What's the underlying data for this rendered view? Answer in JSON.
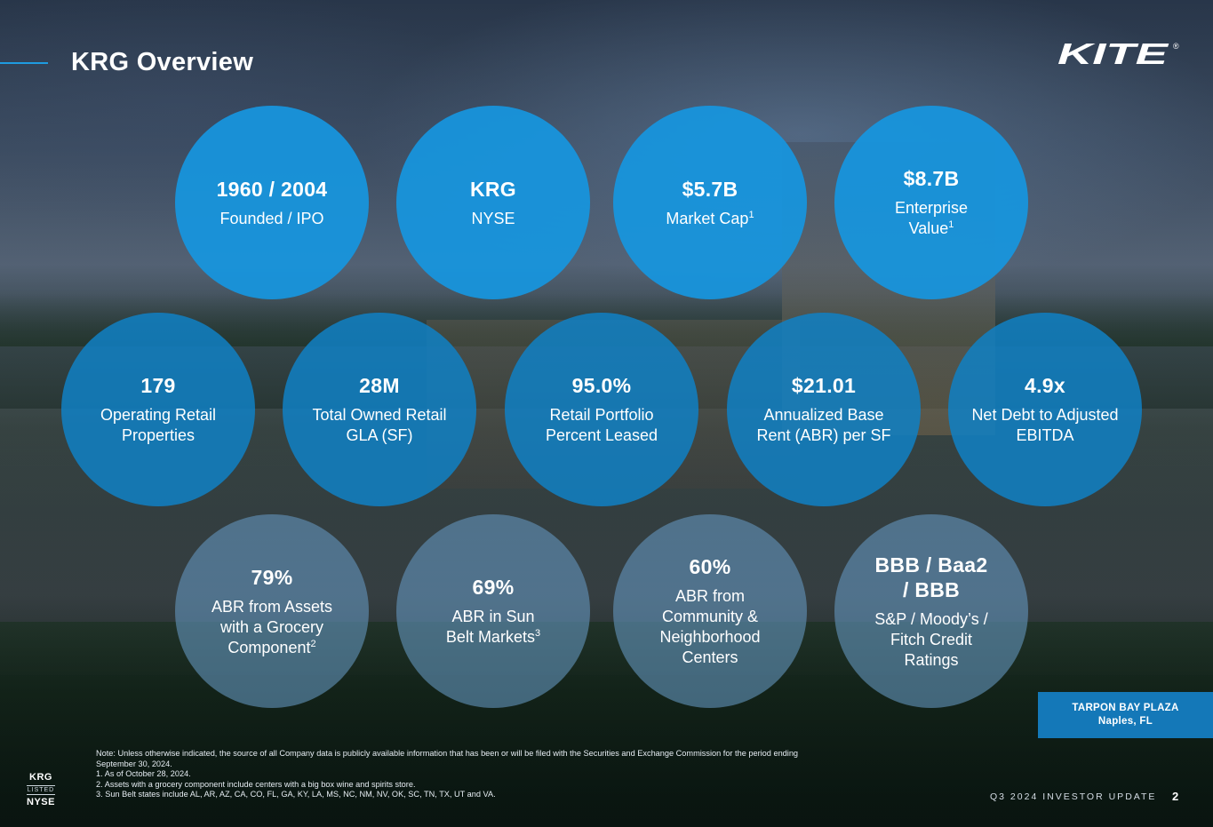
{
  "header": {
    "title": "KRG Overview",
    "logo_text": "KITE",
    "logo_mark": "®"
  },
  "metrics": [
    {
      "value": "1960 / 2004",
      "label": "Founded / IPO",
      "sup": ""
    },
    {
      "value": "KRG",
      "label": "NYSE",
      "sup": ""
    },
    {
      "value": "$5.7B",
      "label": "Market Cap",
      "sup": "1"
    },
    {
      "value": "$8.7B",
      "label": "Enterprise Value",
      "sup": "1"
    },
    {
      "value": "179",
      "label": "Operating Retail Properties",
      "sup": ""
    },
    {
      "value": "28M",
      "label": "Total Owned Retail GLA (SF)",
      "sup": ""
    },
    {
      "value": "95.0%",
      "label": "Retail Portfolio Percent Leased",
      "sup": ""
    },
    {
      "value": "$21.01",
      "label": "Annualized Base Rent (ABR) per SF",
      "sup": ""
    },
    {
      "value": "4.9x",
      "label": "Net Debt to Adjusted EBITDA",
      "sup": ""
    },
    {
      "value": "79%",
      "label": "ABR from Assets with a Grocery Component",
      "sup": "2"
    },
    {
      "value": "69%",
      "label": "ABR in Sun Belt Markets",
      "sup": "3"
    },
    {
      "value": "60%",
      "label": "ABR from Community & Neighborhood Centers",
      "sup": ""
    },
    {
      "value": "BBB / Baa2 / BBB",
      "label": "S&P / Moody’s / Fitch Credit Ratings",
      "sup": ""
    }
  ],
  "location": {
    "name": "TARPON BAY PLAZA",
    "city": "Naples, FL"
  },
  "footnotes": {
    "note_line1": "Note:  Unless otherwise indicated, the source of all Company data is publicly available information that has been or will be filed with the Securities and Exchange Commission for the period ending",
    "note_line2": "September 30, 2024.",
    "fn1": "1.   As of October 28, 2024.",
    "fn2": "2.   Assets with a grocery component include centers with a big box wine and spirits store.",
    "fn3": "3.   Sun Belt states include AL, AR, AZ, CA, CO, FL, GA, KY, LA, MS, NC, NM, NV, OK, SC, TN, TX, UT and VA."
  },
  "listing_badge": {
    "line1": "KRG",
    "line2": "LISTED",
    "line3": "NYSE"
  },
  "footer": {
    "label": "Q3 2024 INVESTOR UPDATE",
    "page_number": "2"
  },
  "colors": {
    "accent": "#1e9be0",
    "circle_bright": "#1796df",
    "location_box": "#1478b8"
  }
}
